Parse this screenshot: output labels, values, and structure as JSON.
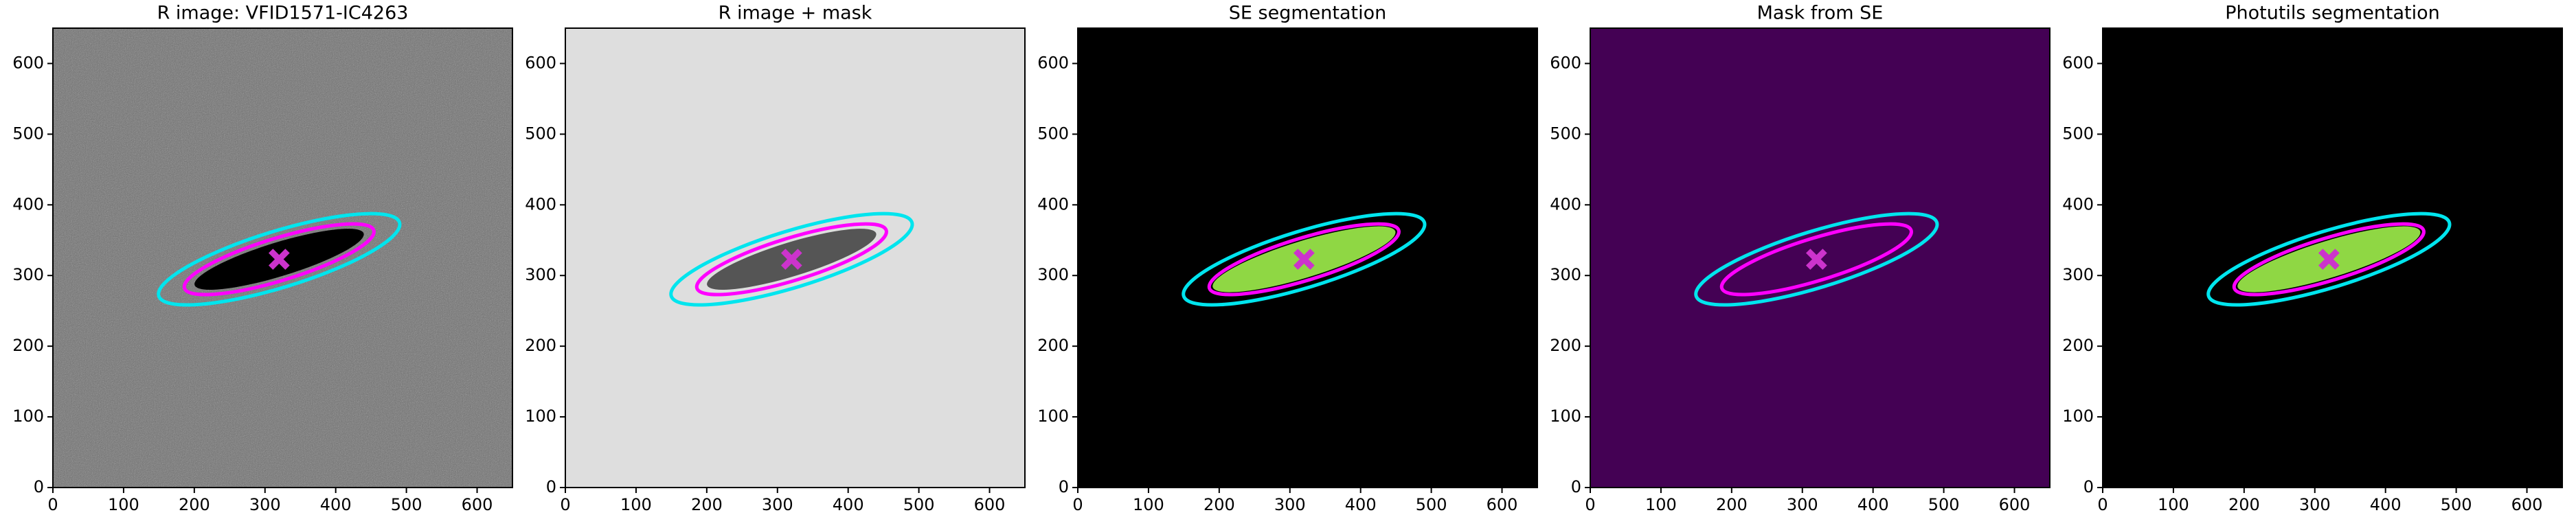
{
  "chart_data": [
    {
      "type": "image",
      "title": "R image: VFID1571-IC4263",
      "background": "#6e6e6e",
      "noise": true,
      "xlim": [
        0,
        650
      ],
      "ylim": [
        0,
        650
      ],
      "xticks": [
        0,
        100,
        200,
        300,
        400,
        500,
        600
      ],
      "yticks": [
        0,
        100,
        200,
        300,
        400,
        500,
        600
      ],
      "ellipses": [
        {
          "cx": 320,
          "cy": 323,
          "a": 178,
          "b": 40,
          "angle": 17,
          "stroke": "#00e5ee",
          "fill": "none"
        },
        {
          "cx": 320,
          "cy": 323,
          "a": 140,
          "b": 30,
          "angle": 17,
          "stroke": "#ff00ff",
          "fill": "none"
        },
        {
          "cx": 320,
          "cy": 323,
          "a": 125,
          "b": 24,
          "angle": 17,
          "stroke": "none",
          "fill": "#000000"
        }
      ],
      "marker": {
        "x": 320,
        "y": 323,
        "color": "#cc33cc"
      }
    },
    {
      "type": "image",
      "title": "R image + mask",
      "background": "#dedede",
      "noise": false,
      "xlim": [
        0,
        650
      ],
      "ylim": [
        0,
        650
      ],
      "xticks": [
        0,
        100,
        200,
        300,
        400,
        500,
        600
      ],
      "yticks": [
        0,
        100,
        200,
        300,
        400,
        500,
        600
      ],
      "ellipses": [
        {
          "cx": 320,
          "cy": 323,
          "a": 125,
          "b": 24,
          "angle": 17,
          "stroke": "none",
          "fill": "#555555"
        },
        {
          "cx": 320,
          "cy": 323,
          "a": 178,
          "b": 40,
          "angle": 17,
          "stroke": "#00e5ee",
          "fill": "none"
        },
        {
          "cx": 320,
          "cy": 323,
          "a": 140,
          "b": 30,
          "angle": 17,
          "stroke": "#ff00ff",
          "fill": "none"
        }
      ],
      "marker": {
        "x": 320,
        "y": 323,
        "color": "#cc33cc"
      }
    },
    {
      "type": "image",
      "title": "SE segmentation",
      "background": "#000000",
      "noise": false,
      "xlim": [
        0,
        650
      ],
      "ylim": [
        0,
        650
      ],
      "xticks": [
        0,
        100,
        200,
        300,
        400,
        500,
        600
      ],
      "yticks": [
        0,
        100,
        200,
        300,
        400,
        500,
        600
      ],
      "ellipses": [
        {
          "cx": 320,
          "cy": 323,
          "a": 135,
          "b": 26,
          "angle": 17,
          "stroke": "none",
          "fill": "#8fd744"
        },
        {
          "cx": 320,
          "cy": 323,
          "a": 178,
          "b": 40,
          "angle": 17,
          "stroke": "#00e5ee",
          "fill": "none"
        },
        {
          "cx": 320,
          "cy": 323,
          "a": 140,
          "b": 30,
          "angle": 17,
          "stroke": "#ff00ff",
          "fill": "none"
        }
      ],
      "marker": {
        "x": 320,
        "y": 323,
        "color": "#cc33cc"
      }
    },
    {
      "type": "image",
      "title": "Mask from SE",
      "background": "#440154",
      "noise": false,
      "xlim": [
        0,
        650
      ],
      "ylim": [
        0,
        650
      ],
      "xticks": [
        0,
        100,
        200,
        300,
        400,
        500,
        600
      ],
      "yticks": [
        0,
        100,
        200,
        300,
        400,
        500,
        600
      ],
      "ellipses": [
        {
          "cx": 320,
          "cy": 323,
          "a": 178,
          "b": 40,
          "angle": 17,
          "stroke": "#00e5ee",
          "fill": "none"
        },
        {
          "cx": 320,
          "cy": 323,
          "a": 140,
          "b": 30,
          "angle": 17,
          "stroke": "#ff00ff",
          "fill": "none"
        }
      ],
      "marker": {
        "x": 320,
        "y": 323,
        "color": "#cc33cc"
      }
    },
    {
      "type": "image",
      "title": "Photutils segmentation",
      "background": "#000000",
      "noise": false,
      "xlim": [
        0,
        650
      ],
      "ylim": [
        0,
        650
      ],
      "xticks": [
        0,
        100,
        200,
        300,
        400,
        500,
        600
      ],
      "yticks": [
        0,
        100,
        200,
        300,
        400,
        500,
        600
      ],
      "ellipses": [
        {
          "cx": 320,
          "cy": 323,
          "a": 135,
          "b": 26,
          "angle": 17,
          "stroke": "none",
          "fill": "#8fd744"
        },
        {
          "cx": 320,
          "cy": 323,
          "a": 178,
          "b": 40,
          "angle": 17,
          "stroke": "#00e5ee",
          "fill": "none"
        },
        {
          "cx": 320,
          "cy": 323,
          "a": 140,
          "b": 30,
          "angle": 17,
          "stroke": "#ff00ff",
          "fill": "none"
        }
      ],
      "marker": {
        "x": 320,
        "y": 323,
        "color": "#cc33cc"
      }
    }
  ]
}
